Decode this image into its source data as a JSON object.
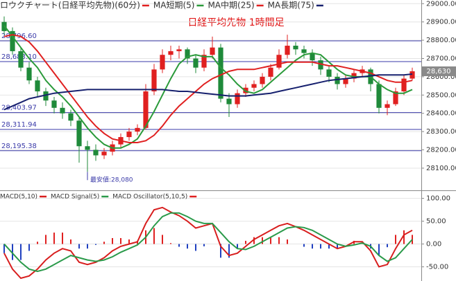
{
  "chart_data": [
    {
      "type": "candlestick",
      "title": "日経平均先物 1時間足",
      "candle_name": "ロウクチャート(日経平均先物)(60分)",
      "candle_color": "#e02020",
      "up_color": "#e02020",
      "down_color": "#1f8a3a",
      "open": [
        28900,
        28850,
        28740,
        28650,
        28580,
        28520,
        28470,
        28430,
        28400,
        28360,
        28220,
        28200,
        28170,
        28190,
        28230,
        28270,
        28300,
        28320,
        28520,
        28640,
        28720,
        28740,
        28750,
        28700,
        28650,
        28720,
        28760,
        28480,
        28450,
        28510,
        28540,
        28560,
        28600,
        28650,
        28720,
        28770,
        28750,
        28730,
        28690,
        28640,
        28600,
        28560,
        28590,
        28620,
        28640,
        28560,
        28430,
        28450,
        28520,
        28590
      ],
      "high": [
        28930,
        28870,
        28760,
        28680,
        28600,
        28540,
        28490,
        28460,
        28420,
        28380,
        28250,
        28230,
        28210,
        28250,
        28290,
        28320,
        28340,
        28560,
        28670,
        28750,
        28770,
        28770,
        28760,
        28720,
        28750,
        28820,
        28780,
        28510,
        28530,
        28560,
        28580,
        28620,
        28670,
        28750,
        28830,
        28790,
        28770,
        28750,
        28710,
        28660,
        28620,
        28610,
        28640,
        28660,
        28650,
        28580,
        28470,
        28540,
        28610,
        28650
      ],
      "low": [
        28830,
        28720,
        28630,
        28560,
        28490,
        28440,
        28400,
        28370,
        28330,
        28130,
        28080,
        28140,
        28150,
        28170,
        28210,
        28250,
        28280,
        28310,
        28500,
        28620,
        28690,
        28700,
        28670,
        28620,
        28630,
        28700,
        28460,
        28380,
        28430,
        28490,
        28520,
        28540,
        28580,
        28640,
        28700,
        28720,
        28700,
        28660,
        28610,
        28570,
        28530,
        28540,
        28570,
        28600,
        28520,
        28400,
        28390,
        28440,
        28500,
        28580
      ],
      "close": [
        28850,
        28740,
        28650,
        28580,
        28520,
        28470,
        28430,
        28400,
        28360,
        28220,
        28200,
        28170,
        28190,
        28230,
        28270,
        28300,
        28320,
        28520,
        28640,
        28720,
        28740,
        28750,
        28700,
        28650,
        28720,
        28760,
        28480,
        28450,
        28510,
        28540,
        28560,
        28600,
        28650,
        28720,
        28770,
        28750,
        28730,
        28690,
        28640,
        28600,
        28560,
        28590,
        28620,
        28640,
        28560,
        28430,
        28450,
        28520,
        28590,
        28630
      ],
      "series": [
        {
          "name": "MA短期(5)",
          "color": "#2a9a3a",
          "values": [
            28880,
            28820,
            28760,
            28700,
            28650,
            28580,
            28530,
            28490,
            28440,
            28380,
            28320,
            28270,
            28230,
            28210,
            28210,
            28230,
            28260,
            28330,
            28410,
            28500,
            28590,
            28670,
            28710,
            28720,
            28710,
            28710,
            28650,
            28610,
            28560,
            28520,
            28510,
            28530,
            28570,
            28610,
            28650,
            28690,
            28720,
            28730,
            28720,
            28680,
            28640,
            28610,
            28600,
            28600,
            28600,
            28560,
            28530,
            28510,
            28510,
            28530
          ]
        },
        {
          "name": "MA中期(25)",
          "color": "#e02020",
          "values": [
            28820,
            28830,
            28820,
            28790,
            28740,
            28680,
            28620,
            28560,
            28500,
            28440,
            28380,
            28330,
            28290,
            28260,
            28250,
            28240,
            28240,
            28250,
            28280,
            28330,
            28390,
            28440,
            28480,
            28520,
            28560,
            28590,
            28610,
            28630,
            28640,
            28640,
            28640,
            28650,
            28660,
            28670,
            28680,
            28680,
            28680,
            28680,
            28670,
            28660,
            28660,
            28650,
            28640,
            28630,
            28620,
            28600,
            28580,
            28570,
            28570,
            28580
          ]
        },
        {
          "name": "MA長期(75)",
          "color": "#16206e",
          "values": [
            28420,
            28440,
            28460,
            28480,
            28490,
            28500,
            28510,
            28515,
            28520,
            28525,
            28530,
            28530,
            28530,
            28530,
            28530,
            28530,
            28530,
            28530,
            28530,
            28530,
            28525,
            28520,
            28520,
            28515,
            28510,
            28505,
            28500,
            28495,
            28495,
            28495,
            28500,
            28505,
            28510,
            28520,
            28530,
            28540,
            28550,
            28560,
            28570,
            28580,
            28585,
            28590,
            28595,
            28600,
            28605,
            28610,
            28610,
            28610,
            28610,
            28615
          ]
        }
      ],
      "ylim": [
        27990,
        29020
      ],
      "yticks": [
        {
          "value": 28100,
          "label": "28100.00"
        },
        {
          "value": 28200,
          "label": "28200.00"
        },
        {
          "value": 28300,
          "label": "28300.00"
        },
        {
          "value": 28400,
          "label": "28400.00"
        },
        {
          "value": 28500,
          "label": "28500.00"
        },
        {
          "value": 28600,
          "label": "28600.00"
        },
        {
          "value": 28700,
          "label": "28700.00"
        },
        {
          "value": 28800,
          "label": "28800.00"
        },
        {
          "value": 28900,
          "label": "28900.00"
        },
        {
          "value": 29000,
          "label": "29000.00"
        }
      ],
      "levels": [
        {
          "value": 28796.6,
          "label": "28,796.60"
        },
        {
          "value": 28683.1,
          "label": "28,683.10"
        },
        {
          "value": 28403.97,
          "label": "28,403.97"
        },
        {
          "value": 28311.94,
          "label": "28,311.94"
        },
        {
          "value": 28195.38,
          "label": "28,195.38"
        }
      ],
      "level_color": "#3a3aa8",
      "last": {
        "value": 28630,
        "label": "28,630"
      },
      "annotation": {
        "value": 28080,
        "label": "最安値:28,080"
      }
    },
    {
      "type": "macd",
      "series": [
        {
          "name": "MACD(5,10)",
          "color": "#d81e1e",
          "values": [
            -20,
            -55,
            -75,
            -70,
            -55,
            -35,
            -20,
            -10,
            -15,
            -40,
            -45,
            -40,
            -30,
            -15,
            -5,
            0,
            5,
            45,
            75,
            80,
            70,
            62,
            50,
            35,
            40,
            45,
            -5,
            -25,
            -20,
            -5,
            10,
            20,
            30,
            40,
            45,
            38,
            30,
            20,
            10,
            0,
            -10,
            -5,
            5,
            5,
            -15,
            -50,
            -45,
            -10,
            20,
            30
          ]
        },
        {
          "name": "MACD Signal(5)",
          "color": "#2a9a4a",
          "values": [
            0,
            -20,
            -40,
            -55,
            -60,
            -55,
            -45,
            -35,
            -25,
            -30,
            -35,
            -38,
            -35,
            -28,
            -18,
            -10,
            -2,
            15,
            40,
            60,
            68,
            68,
            60,
            50,
            45,
            45,
            25,
            5,
            -10,
            -12,
            -5,
            5,
            15,
            25,
            35,
            38,
            36,
            30,
            20,
            10,
            0,
            -5,
            -2,
            2,
            -5,
            -25,
            -38,
            -30,
            -10,
            10
          ]
        },
        {
          "name": "MACD Oscillator(5,10,5)",
          "color": "#e02020",
          "neg_color": "#2040c0",
          "style": "bar",
          "values": [
            -20,
            -35,
            -35,
            -15,
            5,
            20,
            25,
            25,
            10,
            -10,
            -10,
            -2,
            5,
            13,
            13,
            10,
            7,
            30,
            35,
            20,
            2,
            -6,
            -10,
            -15,
            -5,
            0,
            -30,
            -30,
            -10,
            7,
            15,
            15,
            15,
            15,
            10,
            0,
            -6,
            -10,
            -10,
            -10,
            -10,
            0,
            7,
            3,
            -10,
            -25,
            -7,
            20,
            30,
            20
          ]
        }
      ],
      "ylim": [
        -81,
        113
      ],
      "yticks": [
        {
          "value": -50,
          "label": "-50.00"
        },
        {
          "value": 0,
          "label": "0.00"
        },
        {
          "value": 50,
          "label": "50.00"
        },
        {
          "value": 100,
          "label": "100.00"
        }
      ]
    }
  ]
}
